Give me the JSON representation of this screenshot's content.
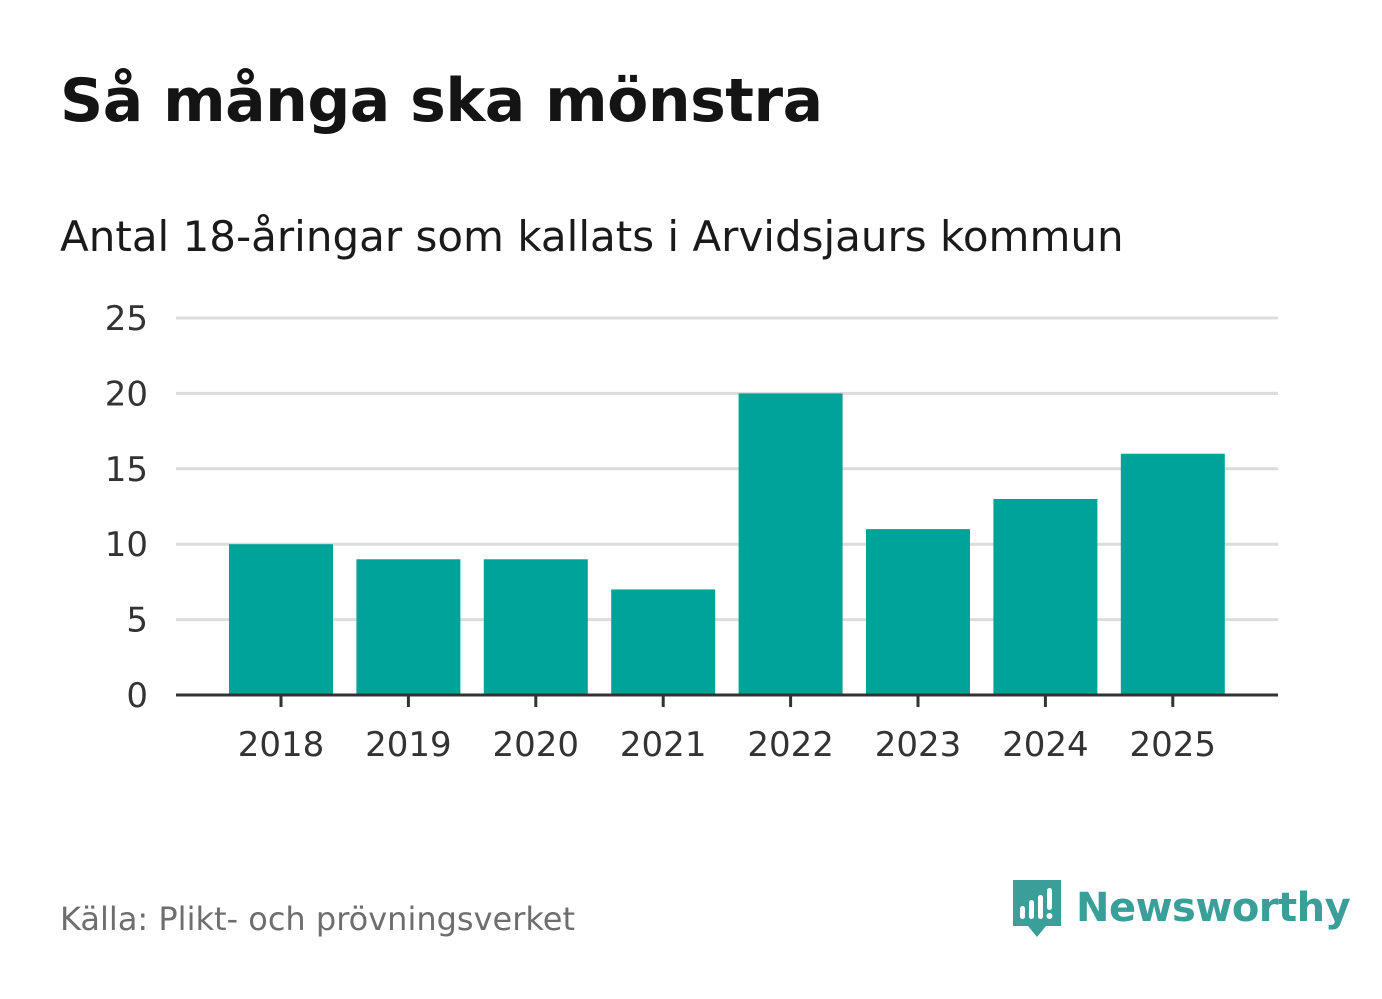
{
  "title": "Så många ska mönstra",
  "subtitle": "Antal 18-åringar som kallats i Arvidsjaurs kommun",
  "source": "Källa: Plikt- och prövningsverket",
  "brand": {
    "name": "Newsworthy",
    "icon": "newsworthy-logo-icon",
    "color": "#3a9f99"
  },
  "colors": {
    "bar": "#00a398",
    "grid": "#dcdcdc",
    "axis": "#333333",
    "tick_text": "#333333"
  },
  "chart_data": {
    "type": "bar",
    "categories": [
      "2018",
      "2019",
      "2020",
      "2021",
      "2022",
      "2023",
      "2024",
      "2025"
    ],
    "values": [
      10,
      9,
      9,
      7,
      20,
      11,
      13,
      16
    ],
    "ylim": [
      0,
      25
    ],
    "yticks": [
      0,
      5,
      10,
      15,
      20,
      25
    ],
    "grid": true,
    "legend": "none"
  }
}
